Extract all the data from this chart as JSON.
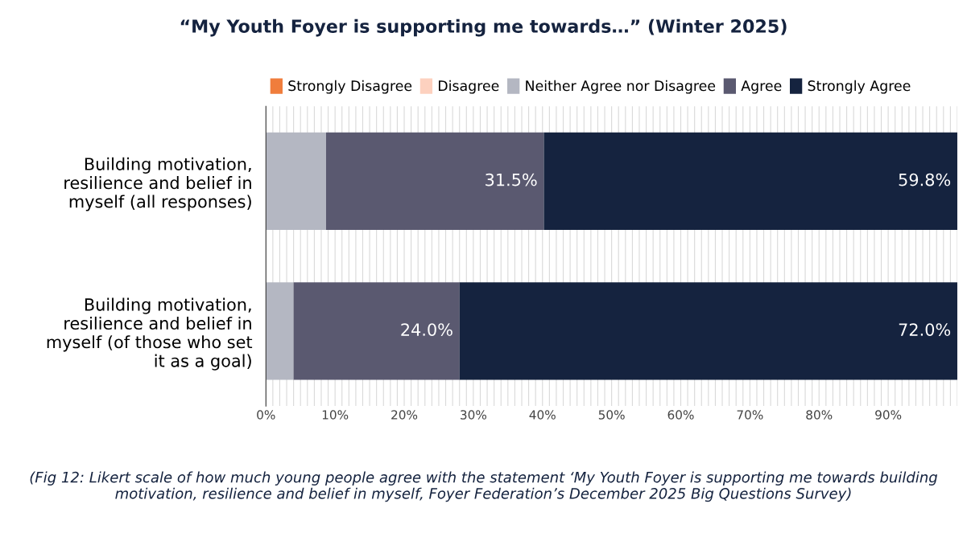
{
  "chart_data": {
    "type": "bar",
    "orientation": "horizontal",
    "stacked": true,
    "title": "“My Youth Foyer is supporting me towards…” (Winter 2025)",
    "categories": [
      "Building motivation, resilience and belief in myself (all responses)",
      "Building motivation, resilience and belief in myself (of those who set it as a goal)"
    ],
    "series": [
      {
        "name": "Strongly Disagree",
        "color": "#f07d3c",
        "values": [
          0,
          0
        ],
        "value_labels": [
          null,
          null
        ]
      },
      {
        "name": "Disagree",
        "color": "#fdd1bf",
        "values": [
          0,
          0
        ],
        "value_labels": [
          null,
          null
        ]
      },
      {
        "name": "Neither Agree nor Disagree",
        "color": "#b4b7c2",
        "values": [
          8.7,
          4.0
        ],
        "value_labels": [
          null,
          null
        ]
      },
      {
        "name": "Agree",
        "color": "#5a5970",
        "values": [
          31.5,
          24.0
        ],
        "value_labels": [
          "31.5%",
          "24.0%"
        ]
      },
      {
        "name": "Strongly Agree",
        "color": "#15233f",
        "values": [
          59.8,
          72.0
        ],
        "value_labels": [
          "59.8%",
          "72.0%"
        ]
      }
    ],
    "xlim": [
      0,
      100
    ],
    "xticks": [
      {
        "value": 0,
        "label": "0%"
      },
      {
        "value": 10,
        "label": "10%"
      },
      {
        "value": 20,
        "label": "20%"
      },
      {
        "value": 30,
        "label": "30%"
      },
      {
        "value": 40,
        "label": "40%"
      },
      {
        "value": 50,
        "label": "50%"
      },
      {
        "value": 60,
        "label": "60%"
      },
      {
        "value": 70,
        "label": "70%"
      },
      {
        "value": 80,
        "label": "80%"
      },
      {
        "value": 90,
        "label": "90%"
      }
    ],
    "grid": "x",
    "legend": "top",
    "annotations": [
      "(Fig 12: Likert scale of how much young people agree with the statement ‘My Youth Foyer is supporting me towards building motivation, resilience and belief in myself, Foyer Federation’s December 2025 Big Questions Survey)"
    ]
  }
}
